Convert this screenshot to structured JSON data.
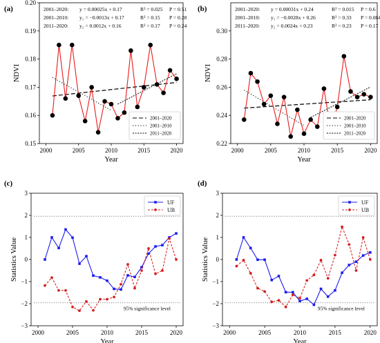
{
  "chart_data": [
    {
      "id": "a",
      "type": "line",
      "panel_label": "(a)",
      "xlabel": "Year",
      "ylabel": "NDVI",
      "xlim": [
        1999,
        2021
      ],
      "ylim": [
        0.15,
        0.2
      ],
      "xticks": [
        2000,
        2005,
        2010,
        2015,
        2020
      ],
      "yticks": [
        0.15,
        0.16,
        0.17,
        0.18,
        0.19,
        0.2
      ],
      "ytick_labels": [
        "0.15",
        "0.16",
        "0.17",
        "0.18",
        "0.19",
        "0.20"
      ],
      "x": [
        2001,
        2002,
        2003,
        2004,
        2005,
        2006,
        2007,
        2008,
        2009,
        2010,
        2011,
        2012,
        2013,
        2014,
        2015,
        2016,
        2017,
        2018,
        2019,
        2020
      ],
      "series": [
        {
          "values": [
            0.16,
            0.185,
            0.166,
            0.185,
            0.167,
            0.158,
            0.17,
            0.154,
            0.165,
            0.164,
            0.159,
            0.161,
            0.183,
            0.163,
            0.17,
            0.185,
            0.171,
            0.168,
            0.176,
            0.173
          ],
          "color": "#e8191a",
          "marker": "circle"
        }
      ],
      "trend_lines": [
        {
          "name": "2001–2020",
          "style": "dashed",
          "x": [
            2001,
            2020
          ],
          "y": [
            0.1669,
            0.1717
          ]
        },
        {
          "name": "2001–2010",
          "style": "dotted",
          "x": [
            2001,
            2010
          ],
          "y": [
            0.1735,
            0.1618
          ]
        },
        {
          "name": "2011–2020",
          "style": "densely-dotted",
          "x": [
            2011,
            2020
          ],
          "y": [
            0.164,
            0.1748
          ]
        }
      ],
      "equations": [
        {
          "period": "2001–2020:",
          "eq": "y = 0.00025x + 0.17",
          "r2": "R² = 0.025",
          "p": "P = 0.51"
        },
        {
          "period": "2001–2010:",
          "eq": "y₁ = −0.0013x + 0.17",
          "r2": "R² = 0.15",
          "p": "P = 0.28"
        },
        {
          "period": "2011–2020:",
          "eq": "y₂ = 0.0012x + 0.16",
          "r2": "R² = 0.17",
          "p": "P = 0.24"
        }
      ],
      "legend": [
        "2001–2020",
        "2001–2010",
        "2011–2020"
      ],
      "legend_position": "bottom-right"
    },
    {
      "id": "b",
      "type": "line",
      "panel_label": "(b)",
      "xlabel": "Year",
      "ylabel": "NDVI",
      "xlim": [
        1999,
        2021
      ],
      "ylim": [
        0.22,
        0.32
      ],
      "xticks": [
        2000,
        2005,
        2010,
        2015,
        2020
      ],
      "yticks": [
        0.22,
        0.24,
        0.26,
        0.28,
        0.3
      ],
      "ytick_labels": [
        "0.22",
        "0.24",
        "0.26",
        "0.28",
        "0.30"
      ],
      "x": [
        2001,
        2002,
        2003,
        2004,
        2005,
        2006,
        2007,
        2008,
        2009,
        2010,
        2011,
        2012,
        2013,
        2014,
        2015,
        2016,
        2017,
        2018,
        2019,
        2020
      ],
      "series": [
        {
          "values": [
            0.237,
            0.27,
            0.264,
            0.248,
            0.254,
            0.234,
            0.253,
            0.225,
            0.244,
            0.227,
            0.237,
            0.232,
            0.259,
            0.23,
            0.246,
            0.282,
            0.257,
            0.253,
            0.255,
            0.253
          ],
          "color": "#e8191a",
          "marker": "circle"
        }
      ],
      "trend_lines": [
        {
          "name": "2001–2020",
          "style": "dashed",
          "x": [
            2001,
            2020
          ],
          "y": [
            0.2452,
            0.2511
          ]
        },
        {
          "name": "2001–2010",
          "style": "dotted",
          "x": [
            2001,
            2010
          ],
          "y": [
            0.258,
            0.2328
          ]
        },
        {
          "name": "2011–2020",
          "style": "densely-dotted",
          "x": [
            2011,
            2020
          ],
          "y": [
            0.2386,
            0.2602
          ]
        }
      ],
      "equations": [
        {
          "period": "2001–2020:",
          "eq": "y = 0.00031x + 0.24",
          "r2": "R² = 0.015",
          "p": "P = 0.6"
        },
        {
          "period": "2001–2010:",
          "eq": "y₁ = −0.0028x + 0.26",
          "r2": "R² = 0.33",
          "p": "P = 0.084"
        },
        {
          "period": "2011–2020:",
          "eq": "y₂ = 0.0024x + 0.23",
          "r2": "R² = 0.23",
          "p": "P = 0.17"
        }
      ],
      "legend": [
        "2001–2020",
        "2001–2010",
        "2011–2020"
      ],
      "legend_position": "bottom-right"
    },
    {
      "id": "c",
      "type": "line",
      "panel_label": "(c)",
      "xlabel": "Year",
      "ylabel": "Statistics Value",
      "xlim": [
        1999,
        2021
      ],
      "ylim": [
        -3,
        3
      ],
      "xticks": [
        2000,
        2005,
        2010,
        2015,
        2020
      ],
      "yticks": [
        -3,
        -2,
        -1,
        0,
        1,
        2,
        3
      ],
      "ytick_labels": [
        "−3",
        "−2",
        "−1",
        "0",
        "1",
        "2",
        "3"
      ],
      "x": [
        2001,
        2002,
        2003,
        2004,
        2005,
        2006,
        2007,
        2008,
        2009,
        2010,
        2011,
        2012,
        2013,
        2014,
        2015,
        2016,
        2017,
        2018,
        2019,
        2020
      ],
      "series": [
        {
          "name": "UF",
          "values": [
            0.0,
            1.0,
            0.52,
            1.36,
            0.99,
            -0.19,
            0.15,
            -0.73,
            -0.81,
            -0.96,
            -1.33,
            -1.36,
            -0.72,
            -0.79,
            -0.35,
            0.27,
            0.59,
            0.65,
            1.0,
            1.18
          ],
          "color": "#1c1cf0",
          "style": "solid",
          "marker": "square"
        },
        {
          "name": "UB",
          "values": [
            -1.18,
            -0.82,
            -1.4,
            -1.4,
            -2.15,
            -2.32,
            -1.9,
            -2.3,
            -1.8,
            -1.8,
            -1.7,
            -1.12,
            -0.22,
            -1.3,
            -0.5,
            0.5,
            -0.65,
            -0.5,
            0.95,
            0.0
          ],
          "color": "#d42020",
          "style": "dashed",
          "marker": "circle"
        }
      ],
      "significance_level": 1.96,
      "annotation": "95% significance level",
      "legend": [
        "UF",
        "UB"
      ],
      "legend_position": "top-right"
    },
    {
      "id": "d",
      "type": "line",
      "panel_label": "(d)",
      "xlabel": "Year",
      "ylabel": "Statistics Value",
      "xlim": [
        1999,
        2021
      ],
      "ylim": [
        -3,
        3
      ],
      "xticks": [
        2000,
        2005,
        2010,
        2015,
        2020
      ],
      "yticks": [
        -3,
        -2,
        -1,
        0,
        1,
        2,
        3
      ],
      "ytick_labels": [
        "−3",
        "−2",
        "−1",
        "0",
        "1",
        "2",
        "3"
      ],
      "x": [
        2001,
        2002,
        2003,
        2004,
        2005,
        2006,
        2007,
        2008,
        2009,
        2010,
        2011,
        2012,
        2013,
        2014,
        2015,
        2016,
        2017,
        2018,
        2019,
        2020
      ],
      "series": [
        {
          "name": "UF",
          "values": [
            0.0,
            1.0,
            0.52,
            -0.01,
            -0.01,
            -0.93,
            -0.75,
            -1.48,
            -1.48,
            -1.88,
            -1.78,
            -2.05,
            -1.33,
            -1.68,
            -1.4,
            -0.6,
            -0.25,
            -0.1,
            0.18,
            0.32
          ],
          "color": "#1c1cf0",
          "style": "solid",
          "marker": "square"
        },
        {
          "name": "UB",
          "values": [
            -0.3,
            -0.03,
            -0.62,
            -1.3,
            -1.45,
            -1.92,
            -1.85,
            -2.15,
            -1.6,
            -1.75,
            -0.95,
            -0.7,
            -0.03,
            -0.85,
            0.2,
            1.48,
            0.68,
            -0.5,
            1.0,
            0.0
          ],
          "color": "#d42020",
          "style": "dashed",
          "marker": "circle"
        }
      ],
      "significance_level": 1.96,
      "annotation": "95% significance level",
      "legend": [
        "UF",
        "UB"
      ],
      "legend_position": "top-right"
    }
  ]
}
